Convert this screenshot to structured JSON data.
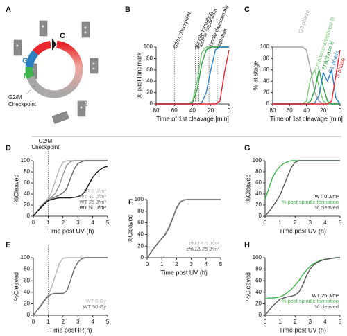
{
  "cell_cycle_diagram": {
    "panel_label": "A",
    "phase_labels": [
      "S",
      "C",
      "G1",
      "M",
      "G2"
    ],
    "checkpoint_label": [
      "G2/M",
      "Checkpoint"
    ]
  },
  "chart_data": [
    {
      "type": "line",
      "panel_label": "B",
      "y_label": "% past landmark",
      "x_label": "Time of 1st cleavage [min]",
      "xlim": [
        80,
        0
      ],
      "xticks": [
        80,
        60,
        40,
        20,
        0
      ],
      "ylim": [
        0,
        100
      ],
      "yticks": [
        0,
        20,
        40,
        60,
        80,
        100
      ],
      "vlines": [
        {
          "x": 60,
          "label": "G2/M checkpoint"
        },
        {
          "x": 37,
          "label": "spindle formation"
        },
        {
          "x": 33,
          "label": "nuclear separation"
        },
        {
          "x": 22,
          "label": "spindle disassembly"
        },
        {
          "x": 13,
          "label": "septation"
        }
      ],
      "x": [
        80,
        75,
        70,
        65,
        60,
        55,
        50,
        45,
        40,
        35,
        30,
        25,
        20,
        15,
        10,
        5,
        0
      ],
      "series": [
        {
          "color": "#7dc87d",
          "values": [
            0,
            0,
            0,
            0,
            0,
            0,
            0,
            0,
            5,
            40,
            90,
            100,
            100,
            100,
            100,
            100,
            100
          ]
        },
        {
          "color": "#2e9e44",
          "values": [
            0,
            0,
            0,
            0,
            0,
            0,
            0,
            0,
            2,
            25,
            70,
            95,
            100,
            100,
            100,
            100,
            100
          ]
        },
        {
          "color": "#2a7fc0",
          "values": [
            0,
            0,
            0,
            0,
            0,
            0,
            0,
            0,
            0,
            0,
            2,
            20,
            60,
            95,
            100,
            100,
            100
          ]
        },
        {
          "color": "#e8262b",
          "values": [
            0,
            0,
            0,
            0,
            0,
            0,
            0,
            0,
            0,
            0,
            0,
            0,
            0,
            0,
            5,
            55,
            95
          ]
        }
      ]
    },
    {
      "type": "line",
      "panel_label": "C",
      "legend": "top",
      "y_label": "% at stage",
      "x_label": "Time of 1st cleavage [min]",
      "xlim": [
        80,
        0
      ],
      "xticks": [
        80,
        60,
        40,
        20,
        0
      ],
      "ylim": [
        0,
        100
      ],
      "yticks": [
        0,
        20,
        40,
        60,
        80,
        100
      ],
      "x": [
        80,
        75,
        70,
        65,
        60,
        55,
        50,
        45,
        40,
        35,
        30,
        25,
        20,
        15,
        10,
        5,
        0
      ],
      "series": [
        {
          "name": "G2 phase",
          "color": "#a0a0a0",
          "values": [
            100,
            100,
            100,
            100,
            100,
            100,
            100,
            100,
            95,
            60,
            20,
            5,
            0,
            0,
            0,
            0,
            0
          ]
        },
        {
          "name": "prophase-anaphase B",
          "color": "#7dc87d",
          "values": [
            0,
            0,
            0,
            0,
            0,
            0,
            0,
            0,
            5,
            45,
            60,
            30,
            5,
            0,
            0,
            0,
            0
          ]
        },
        {
          "name": "anaphase B",
          "color": "#2e9e44",
          "values": [
            0,
            0,
            0,
            0,
            0,
            0,
            0,
            0,
            0,
            5,
            25,
            60,
            30,
            5,
            0,
            0,
            0
          ]
        },
        {
          "name": "G1 phase",
          "color": "#2a7fc0",
          "values": [
            0,
            0,
            0,
            0,
            0,
            0,
            0,
            0,
            0,
            0,
            2,
            15,
            55,
            40,
            60,
            10,
            0
          ]
        },
        {
          "name": "S phase",
          "color": "#e8262b",
          "values": [
            0,
            0,
            0,
            0,
            0,
            0,
            0,
            0,
            0,
            0,
            0,
            0,
            0,
            0,
            5,
            50,
            95
          ]
        }
      ]
    },
    {
      "type": "line",
      "panel_label": "D",
      "legend": "lower right",
      "y_label": "%Cleaved",
      "x_label": "Time post UV (h)",
      "xlim": [
        0,
        5
      ],
      "xticks": [
        0,
        1,
        2,
        3,
        4,
        5
      ],
      "ylim": [
        0,
        100
      ],
      "yticks": [
        0,
        20,
        40,
        60,
        80,
        100
      ],
      "vlines": [
        {
          "x": 1,
          "label": [
            "G2/M",
            "Checkpoint"
          ]
        }
      ],
      "x": [
        0,
        0.25,
        0.5,
        0.75,
        1,
        1.25,
        1.5,
        1.75,
        2,
        2.25,
        2.5,
        2.75,
        3,
        3.25,
        3.5,
        3.75,
        4,
        4.25,
        4.5,
        4.75,
        5
      ],
      "series": [
        {
          "name": "WT 0 J/m²",
          "color": "#b5b5b5",
          "values": [
            0,
            8,
            18,
            25,
            32,
            45,
            65,
            85,
            97,
            100,
            100,
            100,
            100,
            100,
            100,
            100,
            100,
            100,
            100,
            100,
            100
          ]
        },
        {
          "name": "WT 10 J/m²",
          "color": "#959595",
          "values": [
            0,
            8,
            17,
            24,
            30,
            35,
            42,
            55,
            75,
            92,
            98,
            100,
            100,
            100,
            100,
            100,
            100,
            100,
            100,
            100,
            100
          ]
        },
        {
          "name": "WT 25 J/m²",
          "color": "#666666",
          "values": [
            0,
            8,
            16,
            22,
            28,
            32,
            35,
            38,
            42,
            50,
            68,
            85,
            95,
            98,
            100,
            100,
            100,
            100,
            100,
            100,
            100
          ]
        },
        {
          "name": "WT 50 J/m²",
          "color": "#111111",
          "values": [
            0,
            8,
            15,
            22,
            28,
            30,
            32,
            33,
            33,
            33,
            33,
            34,
            35,
            38,
            45,
            58,
            70,
            78,
            84,
            88,
            90
          ]
        }
      ]
    },
    {
      "type": "line",
      "panel_label": "E",
      "legend": "lower right",
      "y_label": "%Cleaved",
      "x_label": "Time post IR(h)",
      "xlim": [
        0,
        5
      ],
      "xticks": [
        0,
        1,
        2,
        3,
        4,
        5
      ],
      "ylim": [
        0,
        100
      ],
      "yticks": [
        0,
        20,
        40,
        60,
        80,
        100
      ],
      "vlines": [
        {
          "x": 1
        }
      ],
      "x": [
        0,
        0.25,
        0.5,
        0.75,
        1,
        1.25,
        1.5,
        1.75,
        2,
        2.25,
        2.5,
        2.75,
        3,
        3.25,
        3.5,
        3.75,
        4,
        4.25,
        4.5,
        4.75,
        5
      ],
      "series": [
        {
          "name": "WT 0 Gy",
          "color": "#b5b5b5",
          "values": [
            0,
            8,
            18,
            27,
            35,
            50,
            70,
            90,
            99,
            100,
            100,
            100,
            100,
            100,
            100,
            100,
            100,
            100,
            100,
            100,
            100
          ]
        },
        {
          "name": "WT 50 Gy",
          "color": "#666666",
          "values": [
            0,
            8,
            16,
            25,
            33,
            37,
            38,
            38,
            38,
            42,
            60,
            80,
            92,
            98,
            100,
            100,
            100,
            100,
            100,
            100,
            100
          ]
        }
      ]
    },
    {
      "type": "line",
      "panel_label": "F",
      "legend": "lower right",
      "legend_font_style": "italic",
      "y_label": "%Cleaved",
      "x_label": "Time post UV (h)",
      "xlim": [
        0,
        5
      ],
      "xticks": [
        0,
        1,
        2,
        3,
        4,
        5
      ],
      "ylim": [
        0,
        100
      ],
      "yticks": [
        0,
        20,
        40,
        60,
        80,
        100
      ],
      "x": [
        0,
        0.25,
        0.5,
        0.75,
        1,
        1.25,
        1.5,
        1.75,
        2,
        2.25,
        2.5,
        2.75,
        3,
        3.25,
        3.5,
        3.75,
        4,
        4.25,
        4.5,
        4.75,
        5
      ],
      "series": [
        {
          "name": "chk1Δ 0 J/m²",
          "color": "#b5b5b5",
          "values": [
            0,
            8,
            17,
            25,
            33,
            42,
            55,
            70,
            87,
            97,
            100,
            100,
            100,
            100,
            100,
            100,
            100,
            100,
            100,
            100,
            100
          ]
        },
        {
          "name": "chk1Δ 25 J/m²",
          "color": "#666666",
          "values": [
            0,
            9,
            18,
            26,
            33,
            40,
            52,
            68,
            85,
            95,
            99,
            100,
            100,
            100,
            100,
            100,
            100,
            100,
            100,
            100,
            100
          ]
        }
      ]
    },
    {
      "type": "line",
      "panel_label": "G",
      "legend": "lower right",
      "legend_title": "WT 0 J/m²",
      "y_label": "%Cleaved",
      "x_label": "Time post UV (h)",
      "xlim": [
        0,
        5
      ],
      "xticks": [
        0,
        1,
        2,
        3,
        4,
        5
      ],
      "ylim": [
        0,
        100
      ],
      "yticks": [
        0,
        20,
        40,
        60,
        80,
        100
      ],
      "x": [
        0,
        0.25,
        0.5,
        0.75,
        1,
        1.25,
        1.5,
        1.75,
        2,
        2.25,
        2.5,
        2.75,
        3,
        3.25,
        3.5,
        3.75,
        4,
        4.25,
        4.5,
        4.75,
        5
      ],
      "series": [
        {
          "name": "% post spindle formation",
          "color": "#3cb54a",
          "values": [
            30,
            50,
            70,
            82,
            90,
            95,
            98,
            100,
            100,
            100,
            100,
            100,
            100,
            100,
            100,
            100,
            100,
            100,
            100,
            100,
            100
          ]
        },
        {
          "name": "% cleaved",
          "color": "#555555",
          "values": [
            0,
            8,
            17,
            27,
            38,
            55,
            72,
            88,
            97,
            100,
            100,
            100,
            100,
            100,
            100,
            100,
            100,
            100,
            100,
            100,
            100
          ]
        }
      ]
    },
    {
      "type": "line",
      "panel_label": "H",
      "legend": "lower right",
      "legend_title": "WT 25 J/m²",
      "y_label": "%Cleaved",
      "x_label": "Time post UV (h)",
      "xlim": [
        0,
        5
      ],
      "xticks": [
        0,
        1,
        2,
        3,
        4,
        5
      ],
      "ylim": [
        0,
        100
      ],
      "yticks": [
        0,
        20,
        40,
        60,
        80,
        100
      ],
      "x": [
        0,
        0.25,
        0.5,
        0.75,
        1,
        1.25,
        1.5,
        1.75,
        2,
        2.25,
        2.5,
        2.75,
        3,
        3.25,
        3.5,
        3.75,
        4,
        4.25,
        4.5,
        4.75,
        5
      ],
      "series": [
        {
          "name": "% post spindle formation",
          "color": "#3cb54a",
          "values": [
            28,
            30,
            30,
            31,
            32,
            35,
            40,
            45,
            52,
            60,
            70,
            78,
            85,
            90,
            93,
            96,
            97,
            98,
            99,
            100,
            100
          ]
        },
        {
          "name": "% cleaved",
          "color": "#555555",
          "values": [
            0,
            8,
            16,
            22,
            28,
            30,
            32,
            33,
            35,
            40,
            52,
            68,
            80,
            88,
            92,
            95,
            97,
            98,
            99,
            100,
            100
          ]
        }
      ]
    }
  ]
}
